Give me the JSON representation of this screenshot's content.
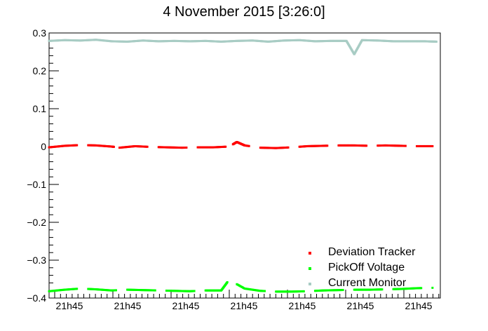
{
  "chart_data": {
    "type": "scatter",
    "title": "4 November 2015 [3:26:0]",
    "ylim": [
      -0.4,
      0.3
    ],
    "y_ticks": [
      {
        "value": 0.3,
        "label": "0.3"
      },
      {
        "value": 0.2,
        "label": "0.2"
      },
      {
        "value": 0.1,
        "label": "0.1"
      },
      {
        "value": 0,
        "label": "0"
      },
      {
        "value": -0.1,
        "label": "−0.1"
      },
      {
        "value": -0.2,
        "label": "−0.2"
      },
      {
        "value": -0.3,
        "label": "−0.3"
      },
      {
        "value": -0.4,
        "label": "−0.4"
      }
    ],
    "x_tick_labels": [
      "21h45",
      "21h45",
      "21h45",
      "21h45",
      "21h45",
      "21h45",
      "21h45"
    ],
    "grid": false,
    "legend_position": "bottom-right",
    "series": [
      {
        "name": "Deviation Tracker",
        "color": "#ff0000",
        "points": [
          [
            0.0,
            -0.002
          ],
          [
            0.04,
            0.002
          ],
          [
            0.08,
            0.004
          ],
          [
            0.12,
            0.003
          ],
          [
            0.16,
            0.0
          ],
          [
            0.18,
            -0.003
          ],
          [
            0.22,
            0.001
          ],
          [
            0.26,
            -0.001
          ],
          [
            0.3,
            -0.002
          ],
          [
            0.34,
            -0.003
          ],
          [
            0.38,
            -0.002
          ],
          [
            0.42,
            -0.002
          ],
          [
            0.46,
            0.0
          ],
          [
            0.48,
            0.012
          ],
          [
            0.5,
            0.003
          ],
          [
            0.54,
            -0.003
          ],
          [
            0.58,
            -0.004
          ],
          [
            0.62,
            -0.002
          ],
          [
            0.66,
            0.001
          ],
          [
            0.7,
            0.002
          ],
          [
            0.74,
            0.003
          ],
          [
            0.78,
            0.003
          ],
          [
            0.82,
            0.002
          ],
          [
            0.86,
            0.003
          ],
          [
            0.9,
            0.002
          ],
          [
            0.94,
            0.001
          ],
          [
            0.98,
            0.001
          ]
        ]
      },
      {
        "name": "PickOff Voltage",
        "color": "#00ff00",
        "points": [
          [
            0.0,
            -0.382
          ],
          [
            0.04,
            -0.378
          ],
          [
            0.08,
            -0.375
          ],
          [
            0.12,
            -0.377
          ],
          [
            0.16,
            -0.38
          ],
          [
            0.2,
            -0.378
          ],
          [
            0.24,
            -0.379
          ],
          [
            0.28,
            -0.38
          ],
          [
            0.32,
            -0.381
          ],
          [
            0.36,
            -0.382
          ],
          [
            0.4,
            -0.38
          ],
          [
            0.44,
            -0.38
          ],
          [
            0.46,
            -0.352
          ],
          [
            0.5,
            -0.375
          ],
          [
            0.54,
            -0.381
          ],
          [
            0.58,
            -0.383
          ],
          [
            0.62,
            -0.383
          ],
          [
            0.66,
            -0.382
          ],
          [
            0.7,
            -0.38
          ],
          [
            0.74,
            -0.379
          ],
          [
            0.78,
            -0.378
          ],
          [
            0.82,
            -0.378
          ],
          [
            0.86,
            -0.377
          ],
          [
            0.9,
            -0.376
          ],
          [
            0.94,
            -0.374
          ],
          [
            0.98,
            -0.373
          ]
        ]
      },
      {
        "name": "Current Monitor",
        "color": "#a8ccc4",
        "points": [
          [
            0.0,
            0.279
          ],
          [
            0.04,
            0.281
          ],
          [
            0.08,
            0.28
          ],
          [
            0.12,
            0.282
          ],
          [
            0.16,
            0.278
          ],
          [
            0.2,
            0.277
          ],
          [
            0.24,
            0.28
          ],
          [
            0.28,
            0.278
          ],
          [
            0.32,
            0.279
          ],
          [
            0.36,
            0.278
          ],
          [
            0.4,
            0.279
          ],
          [
            0.44,
            0.277
          ],
          [
            0.48,
            0.279
          ],
          [
            0.52,
            0.28
          ],
          [
            0.56,
            0.277
          ],
          [
            0.6,
            0.28
          ],
          [
            0.64,
            0.281
          ],
          [
            0.68,
            0.278
          ],
          [
            0.72,
            0.279
          ],
          [
            0.76,
            0.279
          ],
          [
            0.78,
            0.244
          ],
          [
            0.8,
            0.281
          ],
          [
            0.84,
            0.28
          ],
          [
            0.88,
            0.278
          ],
          [
            0.92,
            0.278
          ],
          [
            0.96,
            0.278
          ],
          [
            0.99,
            0.277
          ]
        ]
      }
    ]
  }
}
